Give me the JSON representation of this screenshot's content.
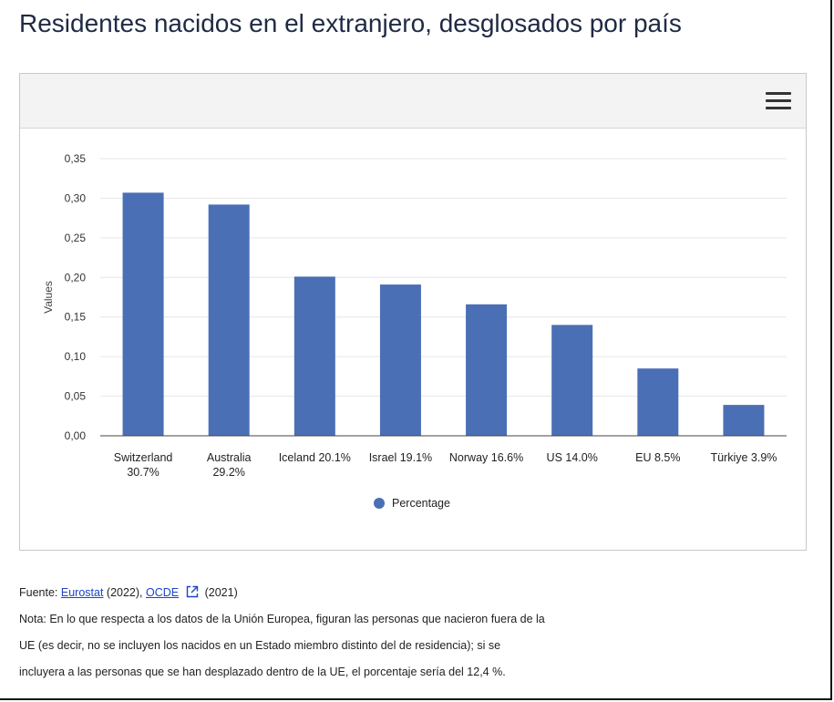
{
  "page": {
    "title": "Residentes nacidos en el extranjero, desglosados por país"
  },
  "toolbar": {
    "menu_icon": "hamburger-menu-icon"
  },
  "chart_data": {
    "type": "bar",
    "ylabel": "Values",
    "xlabel": "",
    "ylim": [
      0,
      0.35
    ],
    "yticks": [
      "0,00",
      "0,05",
      "0,10",
      "0,15",
      "0,20",
      "0,25",
      "0,30",
      "0,35"
    ],
    "ytick_values": [
      0,
      0.05,
      0.1,
      0.15,
      0.2,
      0.25,
      0.3,
      0.35
    ],
    "categories": [
      [
        "Switzerland",
        "30.7%"
      ],
      [
        "Australia",
        "29.2%"
      ],
      [
        "Iceland 20.1%"
      ],
      [
        "Israel 19.1%"
      ],
      [
        "Norway 16.6%"
      ],
      [
        "US 14.0%"
      ],
      [
        "EU 8.5%"
      ],
      [
        "Türkiye 3.9%"
      ]
    ],
    "series": [
      {
        "name": "Percentage",
        "values": [
          0.307,
          0.292,
          0.201,
          0.191,
          0.166,
          0.14,
          0.085,
          0.039
        ]
      }
    ],
    "bar_color": "#4a6fb5",
    "grid": true,
    "legend_position": "bottom"
  },
  "footer": {
    "source_prefix": "Fuente: ",
    "source_link1": "Eurostat",
    "source_year1": " (2022), ",
    "source_link2": "OCDE",
    "source_year2": " (2021)",
    "note_line1": "Nota: En lo que respecta a los datos de la Unión Europea, figuran las personas que nacieron fuera de la",
    "note_line2": "UE (es decir, no se incluyen los nacidos en un Estado miembro distinto del de residencia); si se",
    "note_line3": "incluyera a las personas que se han desplazado dentro de la UE, el porcentaje sería del 12,4 %."
  }
}
